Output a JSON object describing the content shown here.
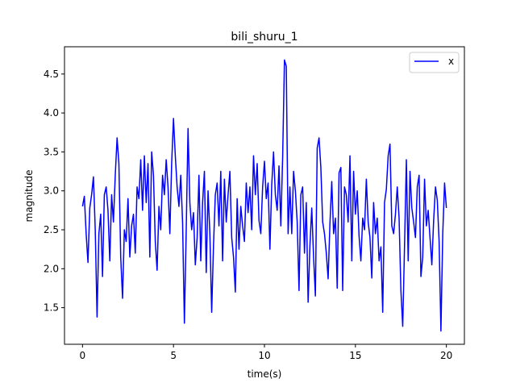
{
  "chart_data": {
    "type": "line",
    "title": "bili_shuru_1",
    "xlabel": "time(s)",
    "ylabel": "magnitude",
    "xlim": [
      -0.99,
      20.99
    ],
    "ylim": [
      1.03,
      4.85
    ],
    "xticks": [
      0,
      5,
      10,
      15,
      20
    ],
    "yticks": [
      1.5,
      2.0,
      2.5,
      3.0,
      3.5,
      4.0,
      4.5
    ],
    "ytick_labels": [
      "1.5",
      "2.0",
      "2.5",
      "3.0",
      "3.5",
      "4.0",
      "4.5"
    ],
    "grid": false,
    "legend": {
      "position": "top-right"
    },
    "series": [
      {
        "name": "x",
        "color": "#0000ff",
        "x": [
          0,
          0.1,
          0.2,
          0.3,
          0.4,
          0.5,
          0.6,
          0.7,
          0.8,
          0.9,
          1.0,
          1.1,
          1.2,
          1.3,
          1.4,
          1.5,
          1.6,
          1.7,
          1.8,
          1.9,
          2.0,
          2.1,
          2.2,
          2.3,
          2.4,
          2.5,
          2.6,
          2.7,
          2.8,
          2.9,
          3.0,
          3.1,
          3.2,
          3.3,
          3.4,
          3.5,
          3.6,
          3.7,
          3.8,
          3.9,
          4.0,
          4.1,
          4.2,
          4.3,
          4.4,
          4.5,
          4.6,
          4.7,
          4.8,
          4.9,
          5.0,
          5.1,
          5.2,
          5.3,
          5.4,
          5.5,
          5.6,
          5.7,
          5.8,
          5.9,
          6.0,
          6.1,
          6.2,
          6.3,
          6.4,
          6.5,
          6.6,
          6.7,
          6.8,
          6.9,
          7.0,
          7.1,
          7.2,
          7.3,
          7.4,
          7.5,
          7.6,
          7.7,
          7.8,
          7.9,
          8.0,
          8.1,
          8.2,
          8.3,
          8.4,
          8.5,
          8.6,
          8.7,
          8.8,
          8.9,
          9.0,
          9.1,
          9.2,
          9.3,
          9.4,
          9.5,
          9.6,
          9.7,
          9.8,
          9.9,
          10.0,
          10.1,
          10.2,
          10.3,
          10.4,
          10.5,
          10.6,
          10.7,
          10.8,
          10.9,
          11.0,
          11.1,
          11.2,
          11.3,
          11.4,
          11.5,
          11.6,
          11.7,
          11.8,
          11.9,
          12.0,
          12.1,
          12.2,
          12.3,
          12.4,
          12.5,
          12.6,
          12.7,
          12.8,
          12.9,
          13.0,
          13.1,
          13.2,
          13.3,
          13.4,
          13.5,
          13.6,
          13.7,
          13.8,
          13.9,
          14.0,
          14.1,
          14.2,
          14.3,
          14.4,
          14.5,
          14.6,
          14.7,
          14.8,
          14.9,
          15.0,
          15.1,
          15.2,
          15.3,
          15.4,
          15.5,
          15.6,
          15.7,
          15.8,
          15.9,
          16.0,
          16.1,
          16.2,
          16.3,
          16.4,
          16.5,
          16.6,
          16.7,
          16.8,
          16.9,
          17.0,
          17.1,
          17.2,
          17.3,
          17.4,
          17.5,
          17.6,
          17.7,
          17.8,
          17.9,
          18.0,
          18.1,
          18.2,
          18.3,
          18.4,
          18.5,
          18.6,
          18.7,
          18.8,
          18.9,
          19.0,
          19.1,
          19.2,
          19.3,
          19.4,
          19.5,
          19.6,
          19.7,
          19.8,
          19.9,
          20.0
        ],
        "y": [
          2.8,
          2.93,
          2.45,
          2.08,
          2.78,
          2.95,
          3.18,
          2.5,
          1.38,
          2.45,
          2.7,
          1.9,
          2.95,
          3.05,
          2.75,
          2.1,
          2.95,
          2.6,
          3.2,
          3.68,
          3.35,
          2.15,
          1.62,
          2.5,
          2.35,
          2.9,
          2.15,
          2.55,
          2.7,
          2.2,
          3.05,
          2.9,
          3.4,
          2.75,
          3.45,
          2.85,
          3.35,
          2.15,
          3.5,
          3.2,
          2.35,
          1.98,
          2.8,
          2.5,
          3.2,
          2.95,
          3.4,
          3.05,
          2.45,
          3.35,
          3.93,
          3.45,
          3.05,
          2.8,
          3.2,
          2.6,
          1.3,
          2.5,
          3.8,
          2.85,
          2.5,
          2.72,
          2.05,
          2.4,
          3.2,
          2.1,
          2.85,
          3.25,
          1.95,
          3.0,
          2.45,
          1.44,
          2.3,
          2.95,
          3.1,
          2.55,
          3.25,
          2.1,
          3.15,
          2.6,
          2.95,
          3.25,
          2.4,
          2.15,
          1.7,
          2.9,
          2.25,
          2.8,
          2.55,
          2.35,
          3.1,
          2.72,
          3.05,
          2.5,
          3.45,
          2.95,
          3.35,
          2.62,
          2.45,
          3.05,
          3.38,
          2.9,
          3.1,
          2.25,
          3.08,
          3.5,
          2.95,
          2.75,
          3.32,
          2.55,
          3.43,
          4.68,
          4.6,
          2.45,
          3.05,
          2.45,
          3.25,
          3.0,
          2.6,
          1.72,
          2.95,
          3.05,
          2.2,
          2.85,
          1.57,
          2.3,
          2.78,
          2.15,
          1.65,
          3.55,
          3.68,
          3.3,
          2.6,
          2.45,
          2.2,
          1.87,
          2.58,
          3.12,
          2.45,
          2.65,
          1.75,
          3.23,
          3.3,
          1.72,
          3.05,
          2.95,
          2.6,
          3.45,
          2.1,
          3.25,
          2.7,
          3.0,
          2.42,
          2.1,
          2.65,
          2.5,
          3.15,
          2.6,
          2.4,
          1.88,
          2.85,
          2.45,
          2.65,
          2.1,
          2.28,
          1.44,
          2.85,
          3.02,
          3.45,
          3.6,
          2.55,
          2.45,
          2.7,
          3.05,
          2.65,
          1.72,
          1.26,
          2.3,
          3.4,
          2.1,
          3.25,
          2.78,
          2.6,
          2.4,
          3.05,
          3.2,
          1.9,
          2.15,
          3.15,
          2.55,
          2.75,
          2.4,
          2.05,
          2.62,
          3.05,
          2.88,
          2.35,
          1.2,
          2.45,
          3.1,
          2.78
        ]
      }
    ]
  }
}
